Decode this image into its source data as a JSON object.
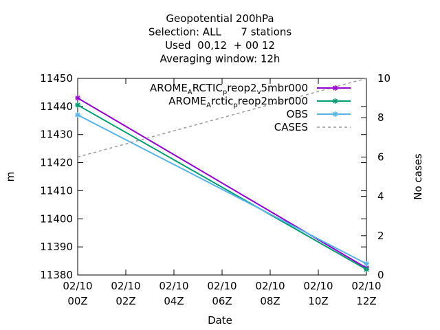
{
  "chart_data": {
    "type": "line",
    "title_lines": [
      "Geopotential 200hPa",
      "Selection: ALL      7 stations",
      "Used  00,12  + 00 12",
      "Averaging window: 12h"
    ],
    "xlabel": "Date",
    "ylabel": "m",
    "y2label": "No cases",
    "x_ticks": [
      {
        "line1": "02/10",
        "line2": "00Z",
        "hour": 0
      },
      {
        "line1": "02/10",
        "line2": "02Z",
        "hour": 2
      },
      {
        "line1": "02/10",
        "line2": "04Z",
        "hour": 4
      },
      {
        "line1": "02/10",
        "line2": "06Z",
        "hour": 6
      },
      {
        "line1": "02/10",
        "line2": "08Z",
        "hour": 8
      },
      {
        "line1": "02/10",
        "line2": "10Z",
        "hour": 10
      },
      {
        "line1": "02/10",
        "line2": "12Z",
        "hour": 12
      }
    ],
    "xlim": [
      0,
      12
    ],
    "ylim": [
      11380,
      11450
    ],
    "y_ticks": [
      11380,
      11390,
      11400,
      11410,
      11420,
      11430,
      11440,
      11450
    ],
    "y2lim": [
      0,
      10
    ],
    "y2_ticks": [
      0,
      2,
      4,
      6,
      8,
      10
    ],
    "legend_position": "top-right",
    "series": [
      {
        "name_parts": [
          {
            "t": "AROME"
          },
          {
            "t": "A",
            "sub": true
          },
          {
            "t": "RCTIC"
          },
          {
            "t": "p",
            "sub": true
          },
          {
            "t": "reop2"
          },
          {
            "t": "v",
            "sub": true
          },
          {
            "t": "5mbr000"
          }
        ],
        "color": "#9400d3",
        "axis": "y1",
        "dash": false,
        "points": [
          [
            0,
            11443
          ],
          [
            12,
            11382.5
          ]
        ]
      },
      {
        "name_parts": [
          {
            "t": "AROME"
          },
          {
            "t": "A",
            "sub": true
          },
          {
            "t": "rctic"
          },
          {
            "t": "p",
            "sub": true
          },
          {
            "t": "reop2mbr000"
          }
        ],
        "color": "#009e73",
        "axis": "y1",
        "dash": false,
        "points": [
          [
            0,
            11440.5
          ],
          [
            12,
            11382
          ]
        ]
      },
      {
        "name_parts": [
          {
            "t": "OBS"
          }
        ],
        "color": "#56b4e9",
        "axis": "y1",
        "dash": false,
        "points": [
          [
            0,
            11437
          ],
          [
            12,
            11384
          ]
        ]
      },
      {
        "name_parts": [
          {
            "t": "CASES"
          }
        ],
        "color": "#999999",
        "axis": "y2",
        "dash": true,
        "points": [
          [
            0,
            6
          ],
          [
            12,
            10
          ]
        ]
      }
    ]
  }
}
